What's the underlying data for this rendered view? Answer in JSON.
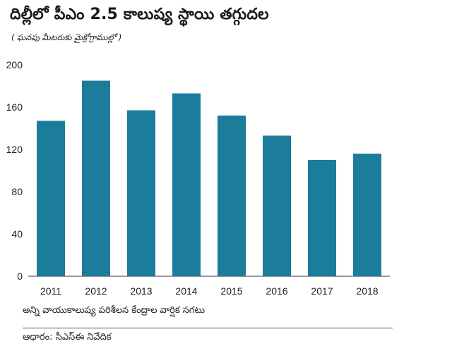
{
  "header": {
    "title": "దిల్లీలో పీఎం 2.5 కాలుష్య స్థాయి తగ్గుదల",
    "subtitle": "( ఘనపు మీటరుకు మైక్రోగ్రాముల్లో )"
  },
  "footer": {
    "note": "అన్ని వాయుకాలుష్య పరిశీలన కేంద్రాల వార్షిక సగటు",
    "source": "ఆధారం: సీఎస్ఈ నివేదిక"
  },
  "chart_data": {
    "type": "bar",
    "title": "దిల్లీలో పీఎం 2.5 కాలుష్య స్థాయి తగ్గుదల",
    "subtitle": "( ఘనపు మీటరుకు మైక్రోగ్రాముల్లో )",
    "xlabel": "",
    "ylabel": "",
    "categories": [
      "2011",
      "2012",
      "2013",
      "2014",
      "2015",
      "2016",
      "2017",
      "2018"
    ],
    "values": [
      147,
      185,
      157,
      173,
      152,
      133,
      110,
      116
    ],
    "ylim": [
      0,
      200
    ],
    "yticks": [
      "0",
      "40",
      "80",
      "120",
      "160",
      "200"
    ],
    "grid": false,
    "legend": "none",
    "colors": {
      "bar": "#1b7d9b",
      "axis": "#333333"
    }
  }
}
